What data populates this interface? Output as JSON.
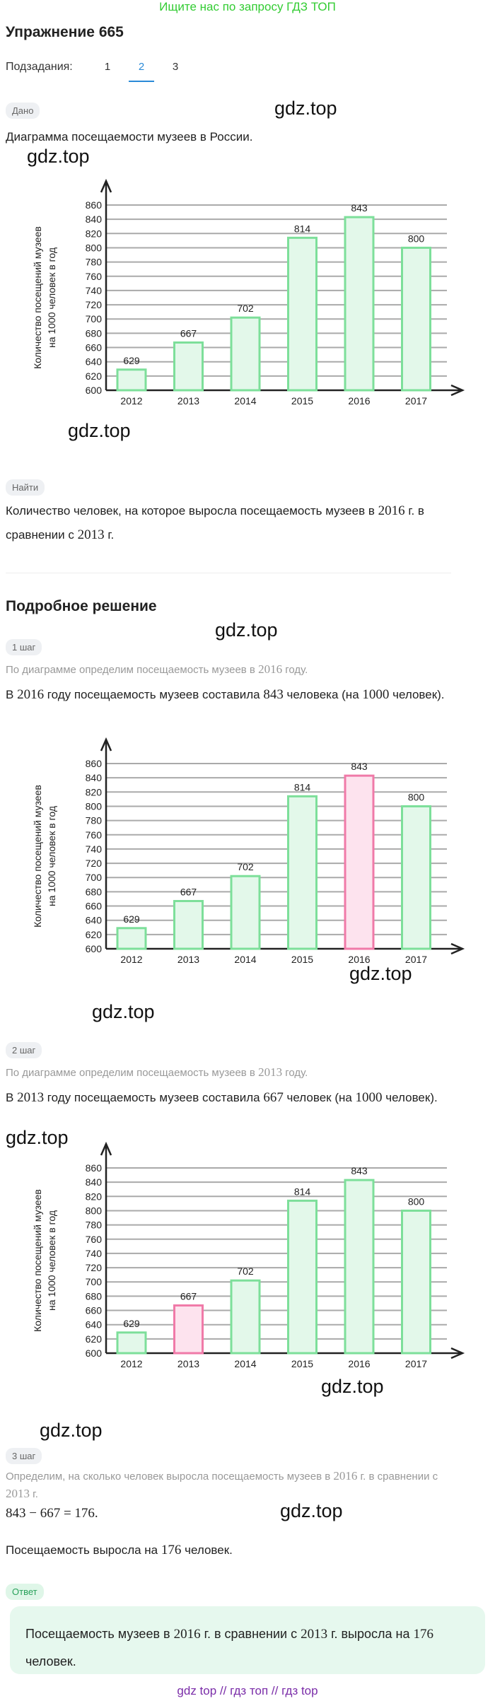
{
  "banner": "Ищите нас по запросу ГДЗ ТОП",
  "title": "Упражнение 665",
  "subtasks": {
    "label": "Подзадания:",
    "items": [
      "1",
      "2",
      "3"
    ],
    "active_index": 1
  },
  "given": {
    "badge": "Дано",
    "text": "Диаграмма посещаемости музеев в России."
  },
  "find": {
    "badge": "Найти",
    "text_a": "Количество человек, на которое выросла посещаемость музеев в ",
    "year_a": "2016",
    "text_b": " г. в",
    "text_c": "сравнении с ",
    "year_b": "2013",
    "text_d": " г."
  },
  "solution": {
    "title": "Подробное решение",
    "step1": {
      "badge": "1 шаг",
      "hint_a": "По диаграмме определим посещаемость музеев в ",
      "hint_year": "2016",
      "hint_b": " году.",
      "t1": "В ",
      "y": "2016",
      "t2": " году посещаемость музеев составила ",
      "v": "843",
      "t3": " человека (на ",
      "k": "1000",
      "t4": " человек)."
    },
    "step2": {
      "badge": "2 шаг",
      "hint_a": "По диаграмме определим посещаемость музеев в ",
      "hint_year": "2013",
      "hint_b": " году.",
      "t1": "В ",
      "y": "2013",
      "t2": " году посещаемость музеев составила ",
      "v": "667",
      "t3": " человек (на ",
      "k": "1000",
      "t4": " человек)."
    },
    "step3": {
      "badge": "3 шаг",
      "hint_a": "Определим, на сколько человек выросла посещаемость музеев в ",
      "hint_year_a": "2016",
      "hint_b": " г. в сравнении с",
      "hint_year_b": "2013",
      "hint_c": " г.",
      "formula": "843 − 667 = 176.",
      "r1": "Посещаемость выросла на ",
      "rv": "176",
      "r2": " человек."
    }
  },
  "answer": {
    "badge": "Ответ",
    "a1": "Посещаемость музеев в ",
    "y1": "2016",
    "a2": " г. в сравнении с ",
    "y2": "2013",
    "a3": " г. выросла на ",
    "v": "176",
    "a4": "человек."
  },
  "watermark": "gdz.top",
  "footer": "gdz top  //  гдз топ  //  гдз top",
  "colors": {
    "bar_green": "#7ddf9a",
    "bar_green_fill": "#e3f8ea",
    "bar_pink": "#f07aa8",
    "bar_pink_fill": "#fde3ee",
    "grid": "#aaaaaa",
    "link": "#2a8ad8"
  },
  "chart_data": [
    {
      "type": "bar",
      "categories": [
        "2012",
        "2013",
        "2014",
        "2015",
        "2016",
        "2017"
      ],
      "values": [
        629,
        667,
        702,
        814,
        843,
        800
      ],
      "ylim": [
        600,
        860
      ],
      "yticks": [
        600,
        620,
        640,
        660,
        680,
        700,
        720,
        740,
        760,
        780,
        800,
        820,
        840,
        860
      ],
      "ylabel_line1": "Количество посещений музеев",
      "ylabel_line2": "на 1000 человек в год",
      "highlight": null
    },
    {
      "type": "bar",
      "categories": [
        "2012",
        "2013",
        "2014",
        "2015",
        "2016",
        "2017"
      ],
      "values": [
        629,
        667,
        702,
        814,
        843,
        800
      ],
      "ylim": [
        600,
        860
      ],
      "yticks": [
        600,
        620,
        640,
        660,
        680,
        700,
        720,
        740,
        760,
        780,
        800,
        820,
        840,
        860
      ],
      "ylabel_line1": "Количество посещений музеев",
      "ylabel_line2": "на 1000 человек в год",
      "highlight": "2016"
    },
    {
      "type": "bar",
      "categories": [
        "2012",
        "2013",
        "2014",
        "2015",
        "2016",
        "2017"
      ],
      "values": [
        629,
        667,
        702,
        814,
        843,
        800
      ],
      "ylim": [
        600,
        860
      ],
      "yticks": [
        600,
        620,
        640,
        660,
        680,
        700,
        720,
        740,
        760,
        780,
        800,
        820,
        840,
        860
      ],
      "ylabel_line1": "Количество посещений музеев",
      "ylabel_line2": "на 1000 человек в год",
      "highlight": "2013"
    }
  ]
}
